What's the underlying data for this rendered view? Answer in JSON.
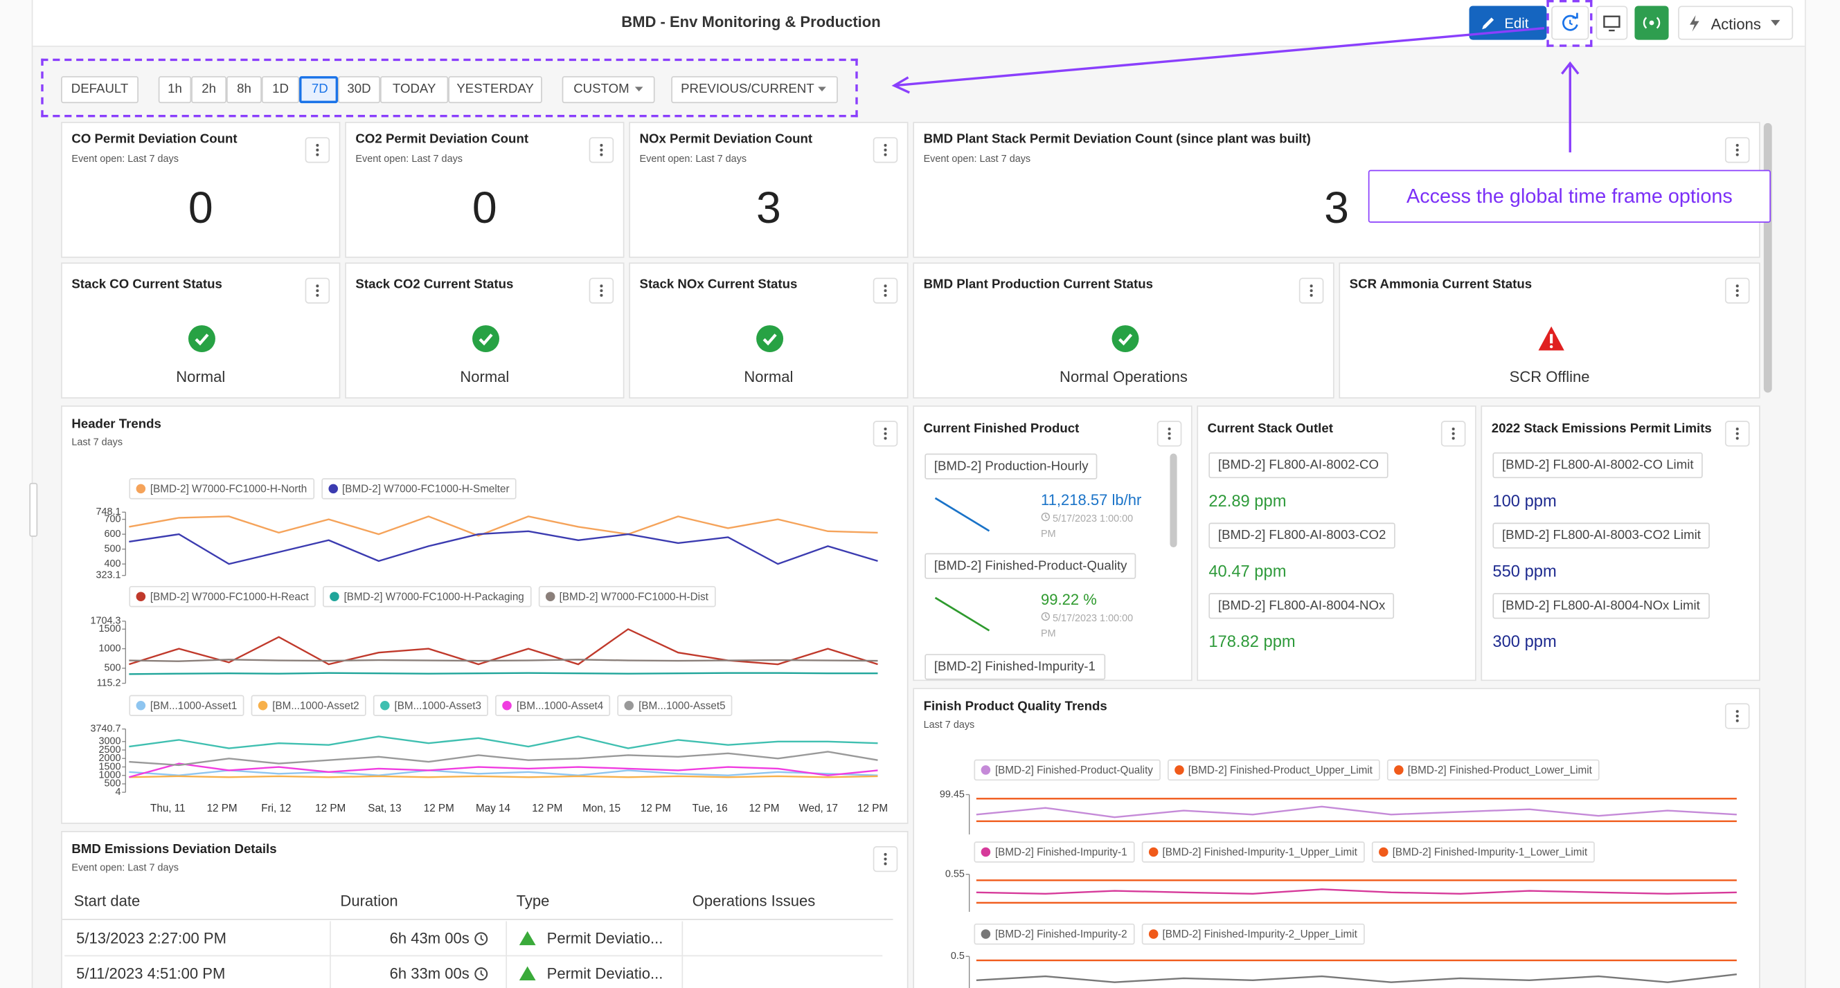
{
  "header": {
    "title": "BMD - Env Monitoring & Production",
    "edit_label": "Edit",
    "actions_label": "Actions"
  },
  "time_bar": {
    "buttons": [
      "DEFAULT",
      "1h",
      "2h",
      "8h",
      "1D",
      "7D",
      "30D",
      "TODAY",
      "YESTERDAY",
      "CUSTOM",
      "PREVIOUS/CURRENT"
    ]
  },
  "annotation": "Access the global time frame options",
  "kpi_tiles": [
    {
      "title": "CO Permit Deviation Count",
      "subtitle": "Event open: Last 7 days",
      "value": 0
    },
    {
      "title": "CO2 Permit Deviation Count",
      "subtitle": "Event open: Last 7 days",
      "value": 0
    },
    {
      "title": "NOx Permit Deviation Count",
      "subtitle": "Event open: Last 7 days",
      "value": 3
    },
    {
      "title": "BMD Plant Stack Permit Deviation Count (since plant was built)",
      "subtitle": "Event open: Last 7 days",
      "value": 3
    }
  ],
  "status_tiles": [
    {
      "title": "Stack CO Current Status",
      "status": "Normal",
      "icon": "ok"
    },
    {
      "title": "Stack CO2 Current Status",
      "status": "Normal",
      "icon": "ok"
    },
    {
      "title": "Stack NOx Current Status",
      "status": "Normal",
      "icon": "ok"
    },
    {
      "title": "BMD Plant Production Current Status",
      "status": "Normal Operations",
      "icon": "ok"
    },
    {
      "title": "SCR Ammonia Current Status",
      "status": "SCR Offline",
      "icon": "warning"
    }
  ],
  "header_trends": {
    "type": "line",
    "title": "Header Trends",
    "subtitle": "Last 7 days",
    "x_labels": [
      "Thu, 11",
      "12 PM",
      "Fri, 12",
      "12 PM",
      "Sat, 13",
      "12 PM",
      "May 14",
      "12 PM",
      "Mon, 15",
      "12 PM",
      "Tue, 16",
      "12 PM",
      "Wed, 17",
      "12 PM"
    ],
    "panels": [
      {
        "ylim": [
          323.1,
          748.1
        ],
        "yticks": [
          748.1,
          700,
          600,
          500,
          400,
          323.1
        ],
        "series": [
          {
            "name": "[BMD-2] W7000-FC1000-H-North",
            "color": "#f5a35a",
            "values": [
              650,
              710,
              720,
              610,
              700,
              600,
              720,
              590,
              720,
              650,
              600,
              720,
              640,
              700,
              620,
              610
            ]
          },
          {
            "name": "[BMD-2] W7000-FC1000-H-Smelter",
            "color": "#3b3bb0",
            "values": [
              550,
              600,
              400,
              480,
              560,
              420,
              520,
              600,
              620,
              560,
              600,
              540,
              580,
              400,
              520,
              420
            ]
          }
        ]
      },
      {
        "ylim": [
          115.2,
          1704.3
        ],
        "yticks": [
          1704.3,
          1500,
          1000,
          500,
          115.2
        ],
        "series": [
          {
            "name": "[BMD-2] W7000-FC1000-H-React",
            "color": "#c0392b",
            "values": [
              600,
              1000,
              650,
              1300,
              600,
              900,
              1000,
              600,
              1000,
              600,
              1500,
              900,
              700,
              600,
              1000,
              600
            ]
          },
          {
            "name": "[BMD-2] W7000-FC1000-H-Packaging",
            "color": "#1fa59a",
            "values": [
              350,
              360,
              370,
              360,
              380,
              370,
              360,
              370,
              380,
              370,
              360,
              370,
              380,
              380,
              370,
              370
            ]
          },
          {
            "name": "[BMD-2] W7000-FC1000-H-Dist",
            "color": "#8a7f7a",
            "values": [
              700,
              680,
              720,
              700,
              690,
              710,
              700,
              690,
              700,
              720,
              700,
              690,
              700,
              710,
              700,
              690
            ]
          }
        ]
      },
      {
        "ylim": [
          4,
          3740.7
        ],
        "yticks": [
          3740.7,
          3000,
          2500,
          2000,
          1500,
          1000,
          500,
          4
        ],
        "series": [
          {
            "name": "[BM...1000-Asset1",
            "color": "#8ec5f0",
            "values": [
              1200,
              1000,
              1300,
              1100,
              1200,
              1000,
              1300,
              1100,
              1200,
              1000,
              1300,
              1100,
              1000,
              1200,
              1100,
              1000
            ]
          },
          {
            "name": "[BM...1000-Asset2",
            "color": "#f7b04a",
            "values": [
              900,
              950,
              900,
              950,
              900,
              950,
              900,
              950,
              900,
              950,
              900,
              950,
              900,
              950,
              900,
              950
            ]
          },
          {
            "name": "[BM...1000-Asset3",
            "color": "#3fbfb0",
            "values": [
              2700,
              3100,
              2600,
              2900,
              2800,
              3300,
              2900,
              3200,
              2700,
              3300,
              2600,
              3100,
              2800,
              3000,
              3000,
              2900
            ]
          },
          {
            "name": "[BM...1000-Asset4",
            "color": "#f03ce0",
            "values": [
              900,
              1700,
              1300,
              1500,
              1200,
              1400,
              1300,
              1500,
              1400,
              1500,
              1400,
              1300,
              1500,
              1400,
              1000,
              1300
            ]
          },
          {
            "name": "[BM...1000-Asset5",
            "color": "#999999",
            "values": [
              1800,
              1600,
              2000,
              1700,
              1900,
              2100,
              1800,
              2200,
              1900,
              2000,
              2200,
              2100,
              2300,
              2000,
              2400,
              1900
            ]
          }
        ]
      }
    ]
  },
  "finished_product": {
    "title": "Current Finished Product",
    "items": [
      {
        "tag": "[BMD-2] Production-Hourly",
        "value": "11,218.57 lb/hr",
        "time": "5/17/2023 1:00:00 PM",
        "color": "#1a73c8"
      },
      {
        "tag": "[BMD-2] Finished-Product-Quality",
        "value": "99.22 %",
        "time": "5/17/2023 1:00:00 PM",
        "color": "#2e9a2e"
      },
      {
        "tag": "[BMD-2] Finished-Impurity-1"
      }
    ]
  },
  "stack_outlet": {
    "title": "Current Stack Outlet",
    "value_color": "#2e9a3a",
    "items": [
      {
        "tag": "[BMD-2] FL800-AI-8002-CO",
        "value": "22.89 ppm"
      },
      {
        "tag": "[BMD-2] FL800-AI-8003-CO2",
        "value": "40.47 ppm"
      },
      {
        "tag": "[BMD-2] FL800-AI-8004-NOx",
        "value": "178.82 ppm"
      }
    ]
  },
  "permit_limits": {
    "title": "2022 Stack Emissions Permit Limits",
    "value_color": "#1d2a8f",
    "items": [
      {
        "tag": "[BMD-2] FL800-AI-8002-CO Limit",
        "value": "100 ppm"
      },
      {
        "tag": "[BMD-2] FL800-AI-8003-CO2 Limit",
        "value": "550 ppm"
      },
      {
        "tag": "[BMD-2] FL800-AI-8004-NOx Limit",
        "value": "300 ppm"
      }
    ]
  },
  "quality_trends": {
    "type": "line",
    "title": "Finish Product Quality Trends",
    "subtitle": "Last 7 days",
    "panels": [
      {
        "ylim": [
          99.15,
          99.45
        ],
        "yticks": [
          99.45
        ],
        "series": [
          {
            "name": "[BMD-2] Finished-Product-Quality",
            "color": "#c58ad8",
            "values": [
              99.3,
              99.35,
              99.28,
              99.33,
              99.3,
              99.36,
              99.3,
              99.32,
              99.34,
              99.29,
              99.33,
              99.3
            ]
          },
          {
            "name": "[BMD-2] Finished-Product_Upper_Limit",
            "color": "#f05a1a",
            "values": [
              99.42,
              99.42,
              99.42,
              99.42,
              99.42,
              99.42,
              99.42,
              99.42,
              99.42,
              99.42,
              99.42,
              99.42
            ]
          },
          {
            "name": "[BMD-2] Finished-Product_Lower_Limit",
            "color": "#f05a1a",
            "values": [
              99.25,
              99.25,
              99.25,
              99.25,
              99.25,
              99.25,
              99.25,
              99.25,
              99.25,
              99.25,
              99.25,
              99.25
            ]
          }
        ]
      },
      {
        "ylim": [
          0.3,
          0.55
        ],
        "yticks": [
          0.55
        ],
        "series": [
          {
            "name": "[BMD-2] Finished-Impurity-1",
            "color": "#d63a9a",
            "values": [
              0.43,
              0.42,
              0.44,
              0.43,
              0.42,
              0.45,
              0.43,
              0.42,
              0.44,
              0.43,
              0.42,
              0.43
            ]
          },
          {
            "name": "[BMD-2] Finished-Impurity-1_Upper_Limit",
            "color": "#f05a1a",
            "values": [
              0.51,
              0.51,
              0.51,
              0.51,
              0.51,
              0.51,
              0.51,
              0.51,
              0.51,
              0.51,
              0.51,
              0.51
            ]
          },
          {
            "name": "[BMD-2] Finished-Impurity-1_Lower_Limit",
            "color": "#f05a1a",
            "values": [
              0.36,
              0.36,
              0.36,
              0.36,
              0.36,
              0.36,
              0.36,
              0.36,
              0.36,
              0.36,
              0.36,
              0.36
            ]
          }
        ]
      },
      {
        "ylim": [
          0.3,
          0.5
        ],
        "yticks": [
          0.5
        ],
        "series": [
          {
            "name": "[BMD-2] Finished-Impurity-2",
            "color": "#777777",
            "values": [
              0.38,
              0.4,
              0.37,
              0.39,
              0.38,
              0.4,
              0.37,
              0.39,
              0.38,
              0.4,
              0.37,
              0.41
            ]
          },
          {
            "name": "[BMD-2] Finished-Impurity-2_Upper_Limit",
            "color": "#f05a1a",
            "values": [
              0.48,
              0.48,
              0.48,
              0.48,
              0.48,
              0.48,
              0.48,
              0.48,
              0.48,
              0.48,
              0.48,
              0.48
            ]
          }
        ]
      }
    ]
  },
  "emissions_table": {
    "title": "BMD Emissions Deviation Details",
    "subtitle": "Event open: Last 7 days",
    "columns": [
      "Start date",
      "Duration",
      "Type",
      "Operations Issues"
    ],
    "rows": [
      [
        "5/13/2023 2:27:00 PM",
        "6h 43m 00s",
        "Permit Deviatio..."
      ],
      [
        "5/11/2023 4:51:00 PM",
        "6h 33m 00s",
        "Permit Deviatio..."
      ]
    ]
  }
}
